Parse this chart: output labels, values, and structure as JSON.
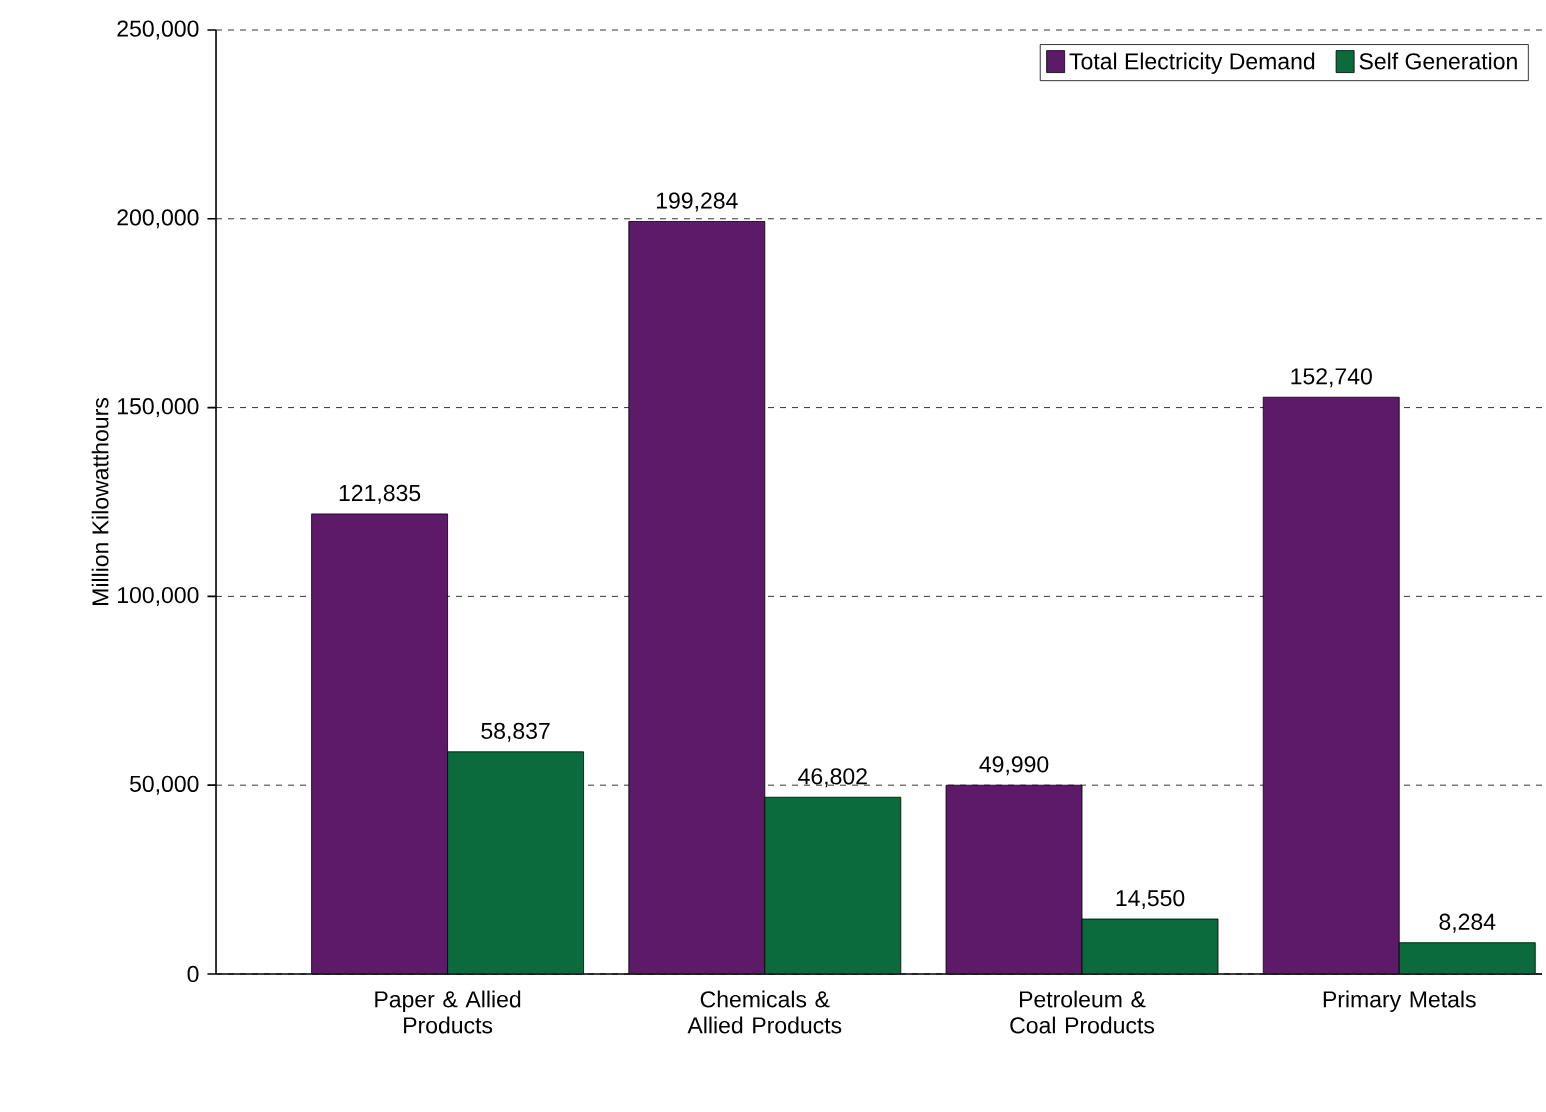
{
  "chart_data": {
    "type": "bar",
    "ylabel": "Million Kilowatthours",
    "categories": [
      "Paper & Allied Products",
      "Chemicals & Allied Products",
      "Petroleum & Coal Products",
      "Primary Metals"
    ],
    "series": [
      {
        "name": "Total Electricity Demand",
        "color": "#5c1a68",
        "values": [
          121835,
          199284,
          49990,
          152740
        ],
        "value_labels": [
          "121,835",
          "199,284",
          "49,990",
          "152,740"
        ]
      },
      {
        "name": "Self Generation",
        "color": "#0b6b3c",
        "values": [
          58837,
          46802,
          14550,
          8284
        ],
        "value_labels": [
          "58,837",
          "46,802",
          "14,550",
          "8,284"
        ]
      }
    ],
    "ylim": [
      0,
      250000
    ],
    "yticks": [
      {
        "value": 0,
        "label": "0"
      },
      {
        "value": 50000,
        "label": "50,000"
      },
      {
        "value": 100000,
        "label": "100,000"
      },
      {
        "value": 150000,
        "label": "150,000"
      },
      {
        "value": 200000,
        "label": "200,000"
      },
      {
        "value": 250000,
        "label": "250,000"
      }
    ],
    "grid": "y",
    "legend": "top right"
  }
}
